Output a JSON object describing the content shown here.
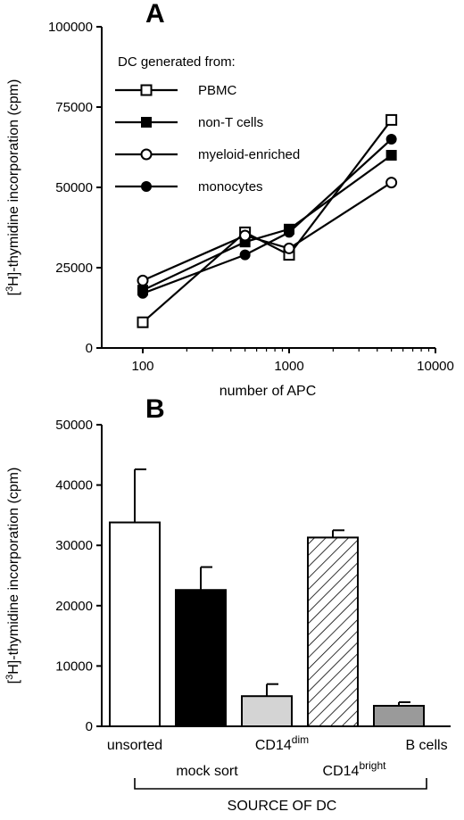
{
  "chart_data": [
    {
      "type": "line",
      "panel": "A",
      "xscale": "log",
      "xlabel": "number of APC",
      "ylabel_prefix": "[",
      "ylabel_sup": "3",
      "ylabel_rest": "H]-thymidine incorporation (cpm)",
      "xlim": [
        100,
        10000
      ],
      "ylim": [
        0,
        100000
      ],
      "xticks": [
        "100",
        "1000",
        "10000"
      ],
      "yticks": [
        "0",
        "25000",
        "50000",
        "75000",
        "100000"
      ],
      "x": [
        100,
        500,
        1000,
        5000
      ],
      "legend_title": "DC generated from:",
      "legend_position": "top-left",
      "series": [
        {
          "name": "PBMC",
          "marker": "open-square",
          "values": [
            8000,
            36000,
            29000,
            71000
          ]
        },
        {
          "name": "non-T cells",
          "marker": "filled-square",
          "values": [
            18000,
            33000,
            37000,
            60000
          ]
        },
        {
          "name": "myeloid-enriched",
          "marker": "open-circle",
          "values": [
            21000,
            35000,
            31000,
            51500
          ]
        },
        {
          "name": "monocytes",
          "marker": "filled-circle",
          "values": [
            17000,
            29000,
            36000,
            65000
          ]
        }
      ]
    },
    {
      "type": "bar",
      "panel": "B",
      "ylabel_prefix": "[",
      "ylabel_sup": "3",
      "ylabel_rest": "H]-thymidine incorporation (cpm)",
      "ylim": [
        0,
        50000
      ],
      "yticks": [
        "0",
        "10000",
        "20000",
        "30000",
        "40000",
        "50000"
      ],
      "xlabel": "SOURCE OF DC",
      "categories": [
        {
          "base": "unsorted",
          "sup": "",
          "fill": "#ffffff",
          "pattern": "none",
          "value": 33800,
          "error": 8800
        },
        {
          "base": "mock sort",
          "sup": "",
          "fill": "#000000",
          "pattern": "none",
          "value": 22600,
          "error": 3800
        },
        {
          "base": "CD14",
          "sup": "dim",
          "fill": "#d4d4d4",
          "pattern": "none",
          "value": 5000,
          "error": 2000
        },
        {
          "base": "CD14",
          "sup": "bright",
          "fill": "#ffffff",
          "pattern": "hatch",
          "value": 31300,
          "error": 1200
        },
        {
          "base": "B cells",
          "sup": "",
          "fill": "#9a9a9a",
          "pattern": "none",
          "value": 3400,
          "error": 600
        }
      ]
    }
  ]
}
